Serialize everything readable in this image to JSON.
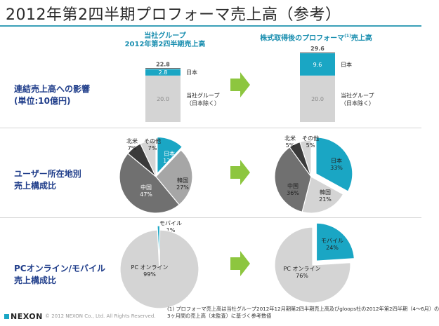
{
  "title": "2012年第2四半期プロフォーマ売上高（参考）",
  "columns": {
    "left": {
      "line1": "当社グループ",
      "line2": "2012年第2四半期売上高"
    },
    "right": {
      "line1": "株式取得後のプロフォーマ",
      "superscript": "(1)",
      "line1_tail": "売上高"
    }
  },
  "rows": {
    "bar": {
      "line1": "連結売上高への影響",
      "line2": "(単位:10億円)"
    },
    "region": {
      "line1": "ユーザー所在地別",
      "line2": "売上構成比"
    },
    "platform": {
      "line1": "PCオンライン/モバイル",
      "line2": "売上構成比"
    }
  },
  "chart_data": [
    {
      "type": "bar",
      "name": "left-stacked-bar",
      "title": "当社グループ 2012年第2四半期売上高",
      "unit": "10億円",
      "total": 22.8,
      "series": [
        {
          "name": "当社グループ（日本除く）",
          "label_line1": "当社グループ",
          "label_line2": "（日本除く）",
          "value": 20.0,
          "value_label": "20.0",
          "color": "#d4d4d4"
        },
        {
          "name": "日本",
          "label_line1": "日本",
          "label_line2": "",
          "value": 2.8,
          "value_label": "2.8",
          "color": "#1aa6c4"
        }
      ],
      "total_label": "22.8",
      "ylim": [
        0,
        29.6
      ]
    },
    {
      "type": "bar",
      "name": "right-stacked-bar",
      "title": "株式取得後のプロフォーマ売上高",
      "unit": "10億円",
      "total": 29.6,
      "series": [
        {
          "name": "当社グループ（日本除く）",
          "label_line1": "当社グループ",
          "label_line2": "（日本除く）",
          "value": 20.0,
          "value_label": "20.0",
          "color": "#d4d4d4"
        },
        {
          "name": "日本",
          "label_line1": "日本",
          "label_line2": "",
          "value": 9.6,
          "value_label": "9.6",
          "color": "#1aa6c4"
        }
      ],
      "total_label": "29.6",
      "ylim": [
        0,
        29.6
      ]
    },
    {
      "type": "pie",
      "name": "left-region-pie",
      "slices": [
        {
          "label": "日本",
          "value": 12,
          "value_label": "12%",
          "color": "#1aa6c4",
          "text_color": "#ffffff",
          "exploded": true
        },
        {
          "label": "韓国",
          "value": 27,
          "value_label": "27%",
          "color": "#a6a6a6",
          "text_color": "#222222"
        },
        {
          "label": "中国",
          "value": 47,
          "value_label": "47%",
          "color": "#707070",
          "text_color": "#ffffff"
        },
        {
          "label": "北米",
          "value": 7,
          "value_label": "7%",
          "color": "#3a3a3a",
          "text_color": "#222222",
          "outside": true
        },
        {
          "label": "その他",
          "value": 7,
          "value_label": "7%",
          "color": "#d4d4d4",
          "text_color": "#222222",
          "outside": true
        }
      ]
    },
    {
      "type": "pie",
      "name": "right-region-pie",
      "slices": [
        {
          "label": "日本",
          "value": 33,
          "value_label": "33%",
          "color": "#1aa6c4",
          "text_color": "#222222",
          "exploded": true
        },
        {
          "label": "韓国",
          "value": 21,
          "value_label": "21%",
          "color": "#d4d4d4",
          "text_color": "#222222"
        },
        {
          "label": "中国",
          "value": 36,
          "value_label": "36%",
          "color": "#707070",
          "text_color": "#222222"
        },
        {
          "label": "北米",
          "value": 5,
          "value_label": "5%",
          "color": "#3a3a3a",
          "text_color": "#222222",
          "outside": true
        },
        {
          "label": "その他",
          "value": 5,
          "value_label": "5%",
          "color": "#d4d4d4",
          "text_color": "#222222",
          "outside": true
        }
      ]
    },
    {
      "type": "pie",
      "name": "left-platform-pie",
      "slices": [
        {
          "label": "モバイル",
          "value": 1,
          "value_label": "1%",
          "color": "#1aa6c4",
          "text_color": "#222222",
          "exploded": true,
          "outside": true
        },
        {
          "label": "PC オンライン",
          "value": 99,
          "value_label": "99%",
          "color": "#d4d4d4",
          "text_color": "#222222"
        }
      ]
    },
    {
      "type": "pie",
      "name": "right-platform-pie",
      "slices": [
        {
          "label": "モバイル",
          "value": 24,
          "value_label": "24%",
          "color": "#1aa6c4",
          "text_color": "#222222",
          "exploded": true
        },
        {
          "label": "PC オンライン",
          "value": 76,
          "value_label": "76%",
          "color": "#d4d4d4",
          "text_color": "#222222"
        }
      ]
    }
  ],
  "footnote": {
    "line1": "(1) プロフォーマ売上高は当社グループ2012年12月期第2四半期売上高及びgloops社の2012年第2四半期（4～6月）の",
    "line2": "3ヶ月間の売上高（未監査）に基づく参考数値"
  },
  "footer": {
    "logo": "NEXON",
    "copyright": "© 2012 NEXON Co., Ltd. All Rights Reserved."
  },
  "colors": {
    "accent": "#1aa6c4",
    "arrow": "#8dc63f",
    "heading_blue": "#1f3d8a"
  }
}
